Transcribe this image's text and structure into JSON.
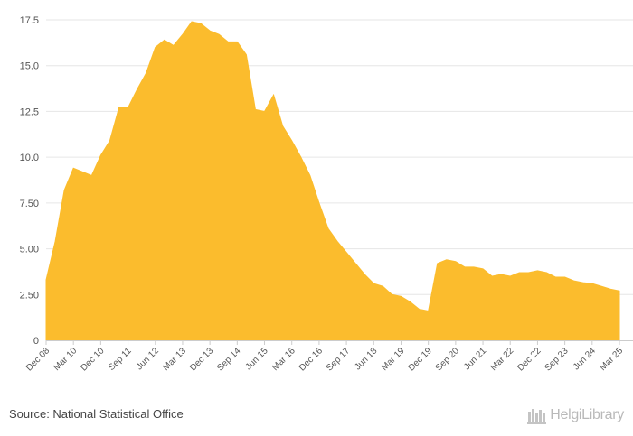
{
  "chart_data": {
    "type": "area",
    "title": "",
    "xlabel": "",
    "ylabel": "",
    "ylim": [
      0,
      17.5
    ],
    "yticks": [
      0,
      2.5,
      5,
      7.5,
      10,
      12.5,
      15,
      17.5
    ],
    "ytick_labels": [
      "0",
      "2.50",
      "5.00",
      "7.50",
      "10.0",
      "12.5",
      "15.0",
      "17.5"
    ],
    "grid": true,
    "color": "#fbbc2d",
    "x_labels": [
      "Dec 08",
      "Mar 10",
      "Dec 10",
      "Sep 11",
      "Jun 12",
      "Mar 13",
      "Dec 13",
      "Sep 14",
      "Jun 15",
      "Mar 16",
      "Dec 16",
      "Sep 17",
      "Jun 18",
      "Mar 19",
      "Dec 19",
      "Sep 20",
      "Jun 21",
      "Mar 22",
      "Dec 22",
      "Sep 23",
      "Jun 24",
      "Mar 25"
    ],
    "values": [
      3.3,
      5.4,
      8.2,
      9.4,
      9.2,
      9.0,
      10.1,
      10.9,
      12.7,
      12.7,
      13.7,
      14.6,
      16.0,
      16.4,
      16.1,
      16.7,
      17.4,
      17.3,
      16.9,
      16.7,
      16.3,
      16.3,
      15.6,
      12.6,
      12.5,
      13.4,
      11.7,
      10.9,
      10.0,
      9.0,
      7.5,
      6.1,
      5.4,
      4.8,
      4.2,
      3.6,
      3.1,
      2.95,
      2.5,
      2.4,
      2.1,
      1.7,
      1.6,
      4.2,
      4.4,
      4.3,
      4.0,
      4.0,
      3.9,
      3.5,
      3.6,
      3.5,
      3.7,
      3.7,
      3.8,
      3.7,
      3.45,
      3.45,
      3.25,
      3.15,
      3.1,
      2.95,
      2.8,
      2.7
    ]
  },
  "footer": {
    "source": "Source: National Statistical Office",
    "brand": "HelgiLibrary"
  }
}
